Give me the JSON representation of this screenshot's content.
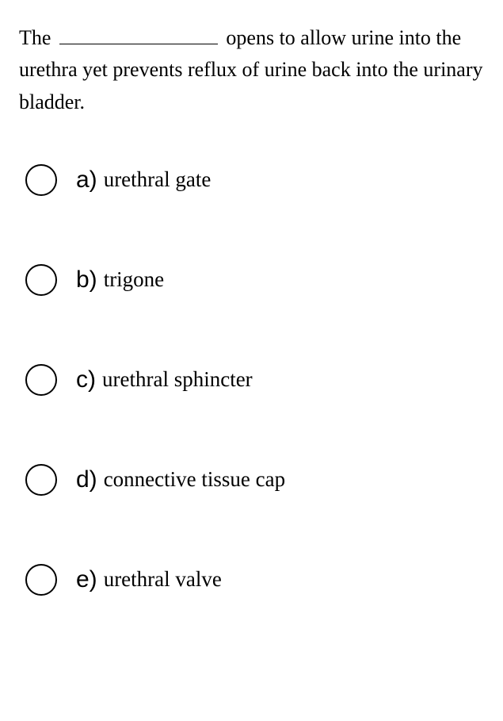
{
  "question": {
    "prefix": "The",
    "suffix": "opens to allow urine into the urethra yet prevents reflux of urine back into the urinary bladder."
  },
  "options": [
    {
      "letter": "a)",
      "text": "urethral gate"
    },
    {
      "letter": "b)",
      "text": "trigone"
    },
    {
      "letter": "c)",
      "text": "urethral sphincter"
    },
    {
      "letter": "d)",
      "text": "connective tissue cap"
    },
    {
      "letter": "e)",
      "text": "urethral valve"
    }
  ]
}
